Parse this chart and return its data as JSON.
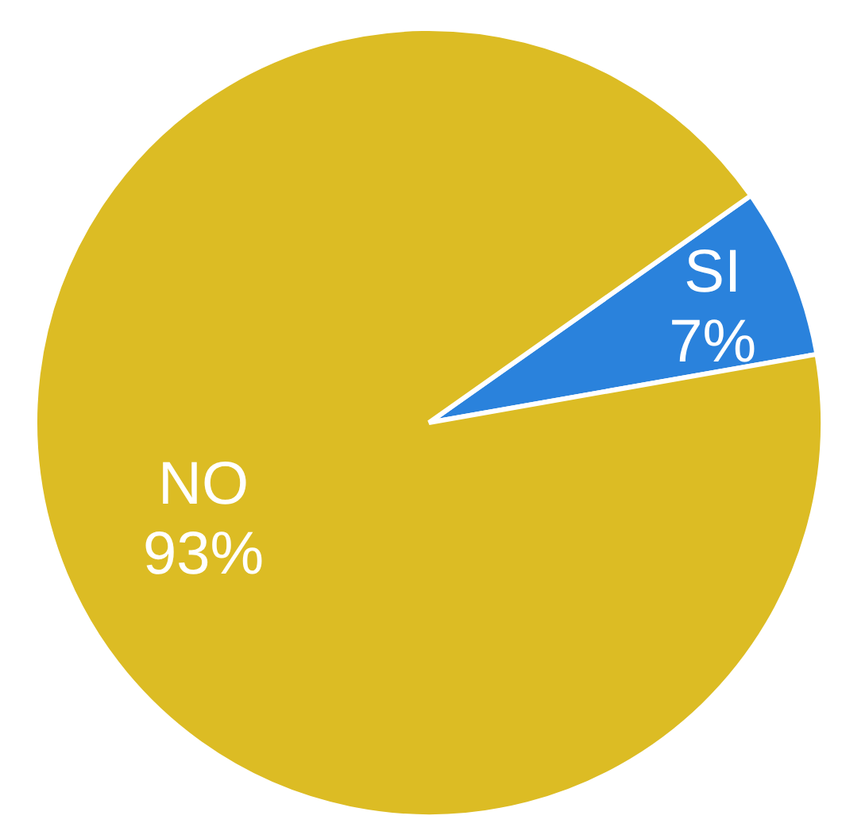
{
  "chart_data": {
    "type": "pie",
    "categories": [
      "SI",
      "NO"
    ],
    "values": [
      7,
      93
    ],
    "colors": [
      "#2a82dc",
      "#dcbc24"
    ],
    "value_labels": [
      "7%",
      "93%"
    ]
  }
}
